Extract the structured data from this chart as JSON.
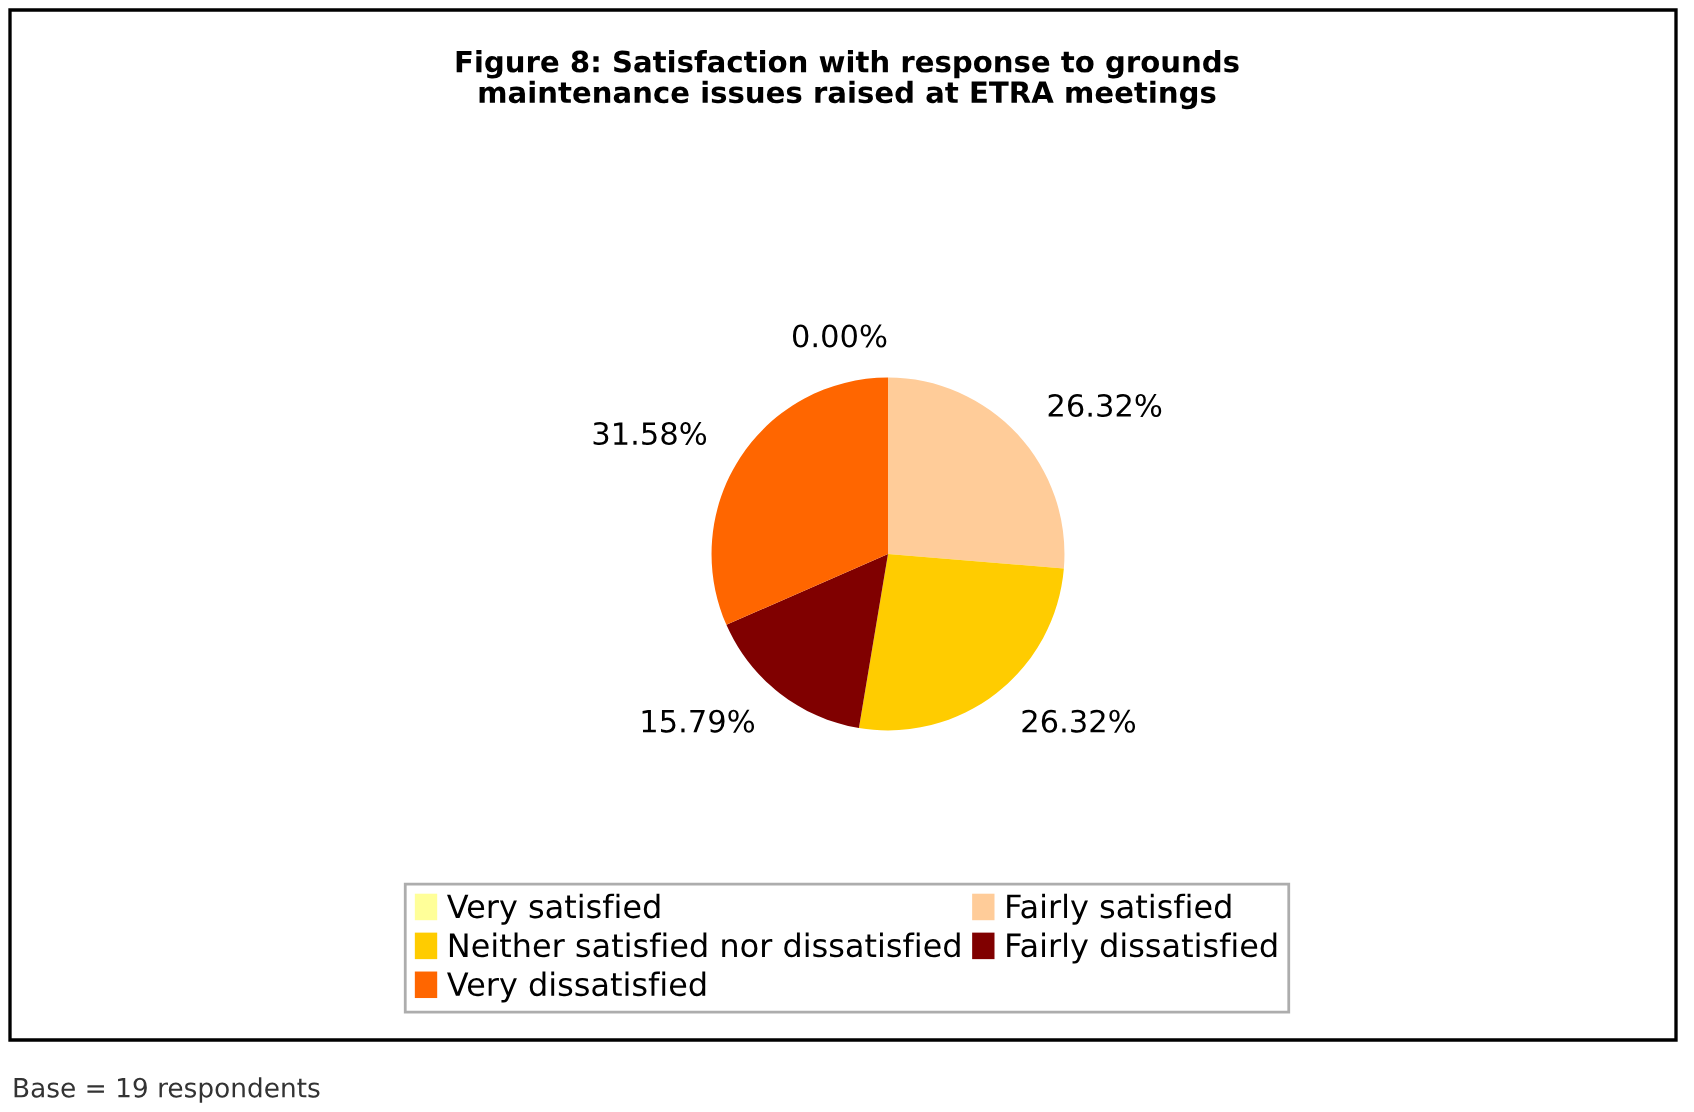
{
  "chart_data": {
    "type": "pie",
    "title": "Figure 8: Satisfaction with response to grounds\nmaintenance issues raised at ETRA meetings",
    "categories": [
      "Very satisfied",
      "Fairly satisfied",
      "Neither satisfied nor dissatisfied",
      "Fairly dissatisfied",
      "Very dissatisfied"
    ],
    "values": [
      0.0,
      26.32,
      26.32,
      15.79,
      31.58
    ],
    "value_labels": [
      "0.00%",
      "26.32%",
      "26.32%",
      "15.79%",
      "31.58%"
    ],
    "colors": [
      "#ffff99",
      "#ffcc99",
      "#ffcc00",
      "#800000",
      "#ff6600"
    ],
    "legend": "bottom",
    "annotations": [
      "Base = 19 respondents"
    ]
  }
}
